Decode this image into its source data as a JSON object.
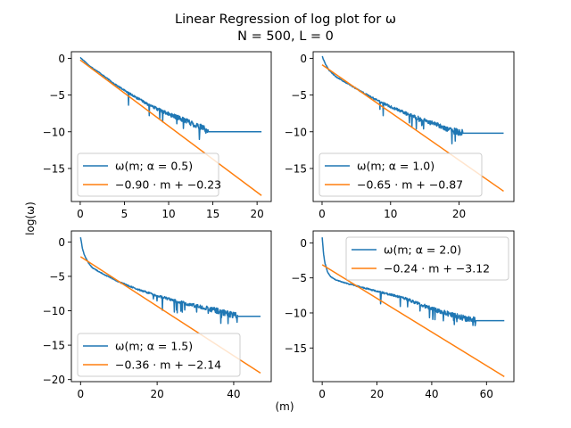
{
  "figure": {
    "title_line1": "Linear Regression of log plot for ω",
    "title_line2": "N = 500, L = 0",
    "xlabel": "(m)",
    "ylabel": "log(ω)"
  },
  "colors": {
    "data": "#1f77b4",
    "fit": "#ff7f0e",
    "axes": "#000000",
    "legend_edge": "#cccccc"
  },
  "chart_data": [
    {
      "type": "line",
      "panel": "top-left",
      "xlim": [
        -1.0,
        21.6
      ],
      "ylim": [
        -19.5,
        0.9
      ],
      "xticks": [
        0,
        5,
        10,
        15,
        20
      ],
      "xtick_labels": [
        "0",
        "5",
        "10",
        "15",
        "20"
      ],
      "yticks": [
        0,
        -5,
        -10,
        -15
      ],
      "ytick_labels": [
        "0",
        "−5",
        "−10",
        "−15"
      ],
      "legend_placement": "lower-left",
      "series": [
        {
          "name": "ω(m; α = 0.5)",
          "x_end": 20.5,
          "floor": -10.0,
          "noise_end": 14.5,
          "start": 0.1,
          "anchors": [
            [
              0,
              0.1
            ],
            [
              0.5,
              -0.4
            ],
            [
              1,
              -1.0
            ],
            [
              2,
              -1.8
            ],
            [
              4,
              -3.6
            ],
            [
              6,
              -5.1
            ],
            [
              8,
              -6.5
            ],
            [
              10,
              -7.6
            ],
            [
              12,
              -8.5
            ],
            [
              14,
              -9.6
            ],
            [
              14.5,
              -10.0
            ]
          ]
        },
        {
          "name": "−0.90 · m + −0.23",
          "slope": -0.9,
          "intercept": -0.23,
          "x_range": [
            0,
            20.5
          ]
        }
      ]
    },
    {
      "type": "line",
      "panel": "top-right",
      "xlim": [
        -1.3,
        28.0
      ],
      "ylim": [
        -19.5,
        0.9
      ],
      "xticks": [
        0,
        10,
        20
      ],
      "xtick_labels": [
        "0",
        "10",
        "20"
      ],
      "yticks": [
        0,
        -5,
        -10,
        -15
      ],
      "ytick_labels": [
        "0",
        "−5",
        "−10",
        "−15"
      ],
      "legend_placement": "lower-left",
      "series": [
        {
          "name": "ω(m; α = 1.0)",
          "x_end": 26.5,
          "floor": -10.2,
          "noise_end": 20.5,
          "start": 0.3,
          "anchors": [
            [
              0,
              0.3
            ],
            [
              0.5,
              -0.8
            ],
            [
              1,
              -1.6
            ],
            [
              2,
              -2.5
            ],
            [
              4,
              -3.6
            ],
            [
              7,
              -5.2
            ],
            [
              10,
              -6.6
            ],
            [
              13,
              -7.8
            ],
            [
              16,
              -8.8
            ],
            [
              19,
              -9.8
            ],
            [
              20.5,
              -10.2
            ]
          ]
        },
        {
          "name": "−0.65 · m + −0.87",
          "slope": -0.65,
          "intercept": -0.87,
          "x_range": [
            0,
            26.5
          ]
        }
      ]
    },
    {
      "type": "line",
      "panel": "bottom-left",
      "xlim": [
        -2.4,
        49.8
      ],
      "ylim": [
        -20.3,
        1.6
      ],
      "xticks": [
        0,
        20,
        40
      ],
      "xtick_labels": [
        "0",
        "20",
        "40"
      ],
      "yticks": [
        0,
        -5,
        -10,
        -15,
        -20
      ],
      "ytick_labels": [
        "0",
        "−5",
        "−10",
        "−15",
        "−20"
      ],
      "legend_placement": "lower-left",
      "series": [
        {
          "name": "ω(m; α = 1.5)",
          "x_end": 47.0,
          "floor": -10.8,
          "noise_end": 41.0,
          "start": 0.7,
          "anchors": [
            [
              0,
              0.7
            ],
            [
              0.5,
              -1.0
            ],
            [
              1,
              -1.9
            ],
            [
              2,
              -3.0
            ],
            [
              3,
              -3.7
            ],
            [
              5,
              -4.4
            ],
            [
              10,
              -5.8
            ],
            [
              15,
              -6.9
            ],
            [
              20,
              -7.8
            ],
            [
              25,
              -8.6
            ],
            [
              30,
              -9.3
            ],
            [
              35,
              -9.9
            ],
            [
              41,
              -10.8
            ]
          ]
        },
        {
          "name": "−0.36 · m + −2.14",
          "slope": -0.36,
          "intercept": -2.14,
          "x_range": [
            0,
            47.0
          ]
        }
      ]
    },
    {
      "type": "line",
      "panel": "bottom-right",
      "xlim": [
        -3.3,
        70.0
      ],
      "ylim": [
        -19.8,
        1.7
      ],
      "xticks": [
        0,
        20,
        40,
        60
      ],
      "xtick_labels": [
        "0",
        "20",
        "40",
        "60"
      ],
      "yticks": [
        0,
        -5,
        -10,
        -15
      ],
      "ytick_labels": [
        "0",
        "−5",
        "−10",
        "−15"
      ],
      "legend_placement": "upper-right",
      "series": [
        {
          "name": "ω(m; α = 2.0)",
          "x_end": 66.5,
          "floor": -11.1,
          "noise_end": 56.0,
          "start": 0.8,
          "anchors": [
            [
              0,
              0.8
            ],
            [
              0.5,
              -1.6
            ],
            [
              1,
              -2.9
            ],
            [
              2,
              -4.2
            ],
            [
              3,
              -4.8
            ],
            [
              5,
              -5.3
            ],
            [
              10,
              -5.9
            ],
            [
              20,
              -6.9
            ],
            [
              30,
              -7.9
            ],
            [
              40,
              -9.4
            ],
            [
              50,
              -10.6
            ],
            [
              53,
              -10.8
            ],
            [
              56,
              -11.1
            ]
          ]
        },
        {
          "name": "−0.24 · m + −3.12",
          "slope": -0.24,
          "intercept": -3.12,
          "x_range": [
            0,
            66.5
          ]
        }
      ]
    }
  ]
}
